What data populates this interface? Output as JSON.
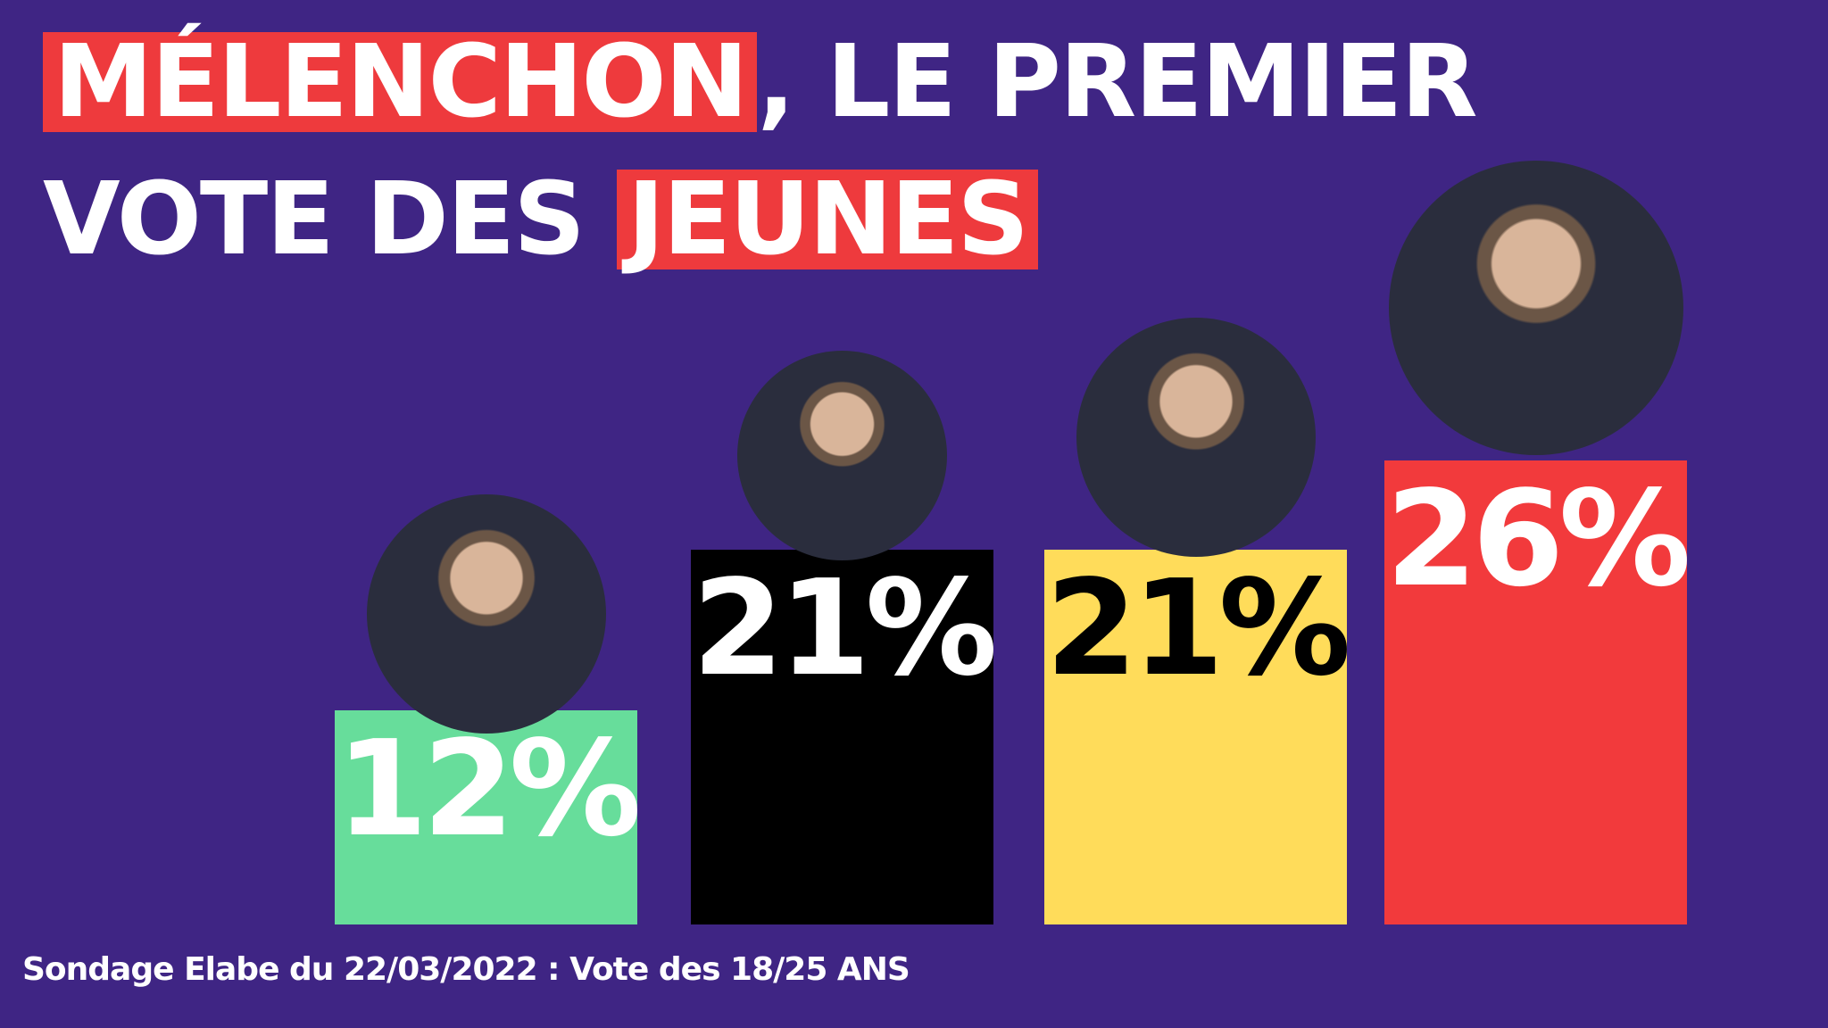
{
  "headline": {
    "line1_highlight": "MÉLENCHON",
    "line1_rest": ", LE PREMIER",
    "line2_rest": "VOTE DES ",
    "line2_highlight": "JEUNES"
  },
  "colors": {
    "background": "#3f2584",
    "highlight": "#ee3a3d",
    "text": "#ffffff"
  },
  "chart_data": {
    "type": "bar",
    "categories": [
      "12%",
      "21%",
      "21%",
      "26%"
    ],
    "values": [
      12,
      21,
      21,
      26
    ],
    "labels": [
      "12%",
      "21%",
      "21%",
      "26%"
    ],
    "colors": [
      "#67dd9b",
      "#000000",
      "#ffdc5a",
      "#f23a3c"
    ],
    "label_colors": [
      "#ffffff",
      "#ffffff",
      "#000000",
      "#ffffff"
    ],
    "portraits": [
      "portrait-jadot",
      "portrait-le-pen",
      "portrait-macron",
      "portrait-melenchon"
    ],
    "title": "",
    "xlabel": "",
    "ylabel": ""
  },
  "footer": {
    "source": "Sondage Elabe du 22/03/2022 : Vote des 18/25 ANS"
  }
}
